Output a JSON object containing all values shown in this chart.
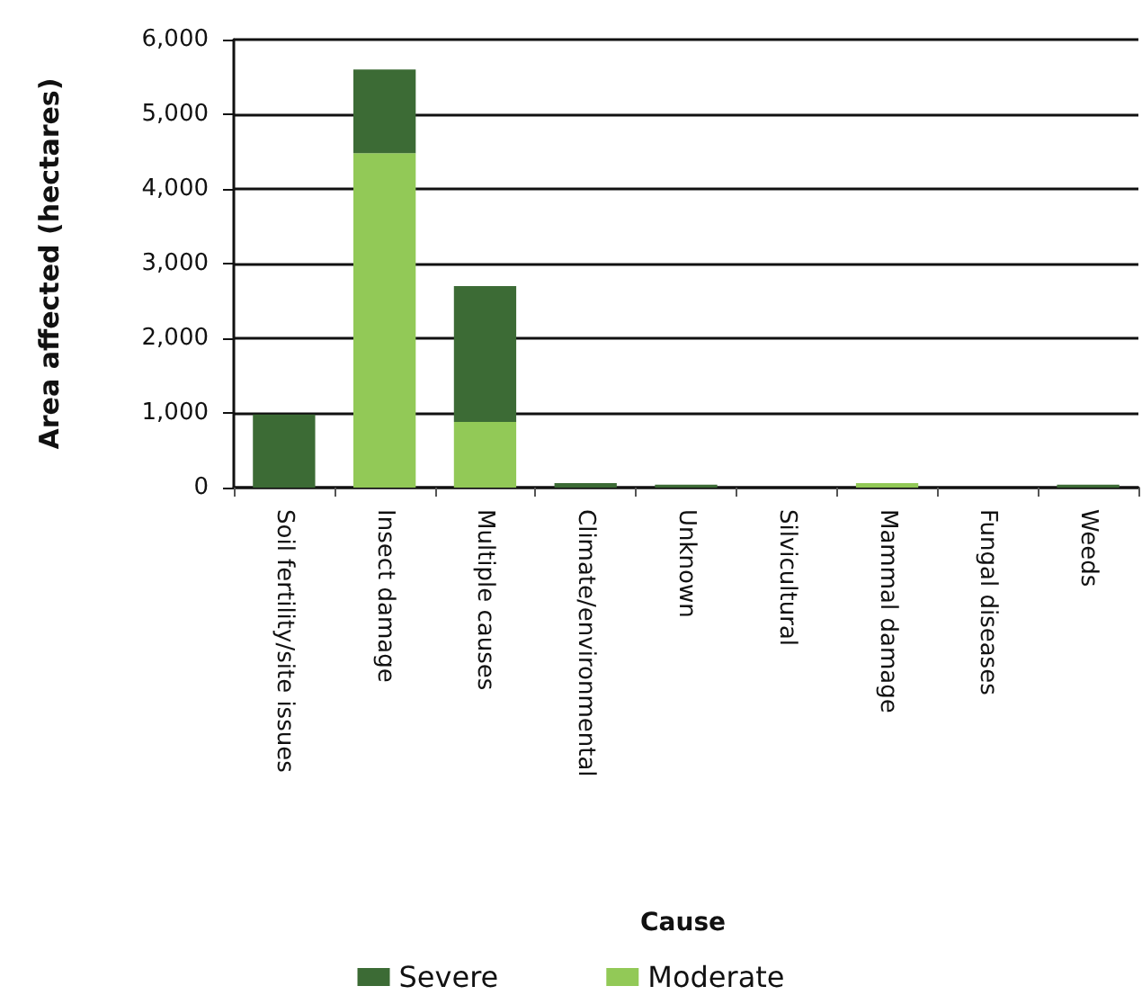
{
  "chart_data": {
    "type": "bar",
    "stacked": true,
    "annotations": [
      "Cause"
    ],
    "ylabel": "Area affected (hectares)",
    "categories": [
      "Soil fertility/site issues",
      "Insect damage",
      "Multiple causes",
      "Climate/environmental",
      "Unknown",
      "Silvicultural",
      "Mammal damage",
      "Fungal diseases",
      "Weeds"
    ],
    "series": [
      {
        "name": "Moderate",
        "color": "#92c957",
        "values": [
          0,
          4480,
          880,
          0,
          0,
          0,
          60,
          0,
          0
        ]
      },
      {
        "name": "Severe",
        "color": "#3c6b35",
        "values": [
          980,
          1120,
          1820,
          60,
          40,
          0,
          0,
          0,
          40
        ]
      }
    ],
    "ylim": [
      0,
      6000
    ],
    "yticks": [
      0,
      {
        "value": 1000,
        "label": "1,000"
      },
      {
        "value": 2000,
        "label": "2,000"
      },
      {
        "value": 3000,
        "label": "3,000"
      },
      {
        "value": 4000,
        "label": "4,000"
      },
      {
        "value": 5000,
        "label": "5,000"
      },
      {
        "value": 6000,
        "label": "6,000"
      }
    ],
    "grid": "y",
    "legend": "bottom"
  }
}
